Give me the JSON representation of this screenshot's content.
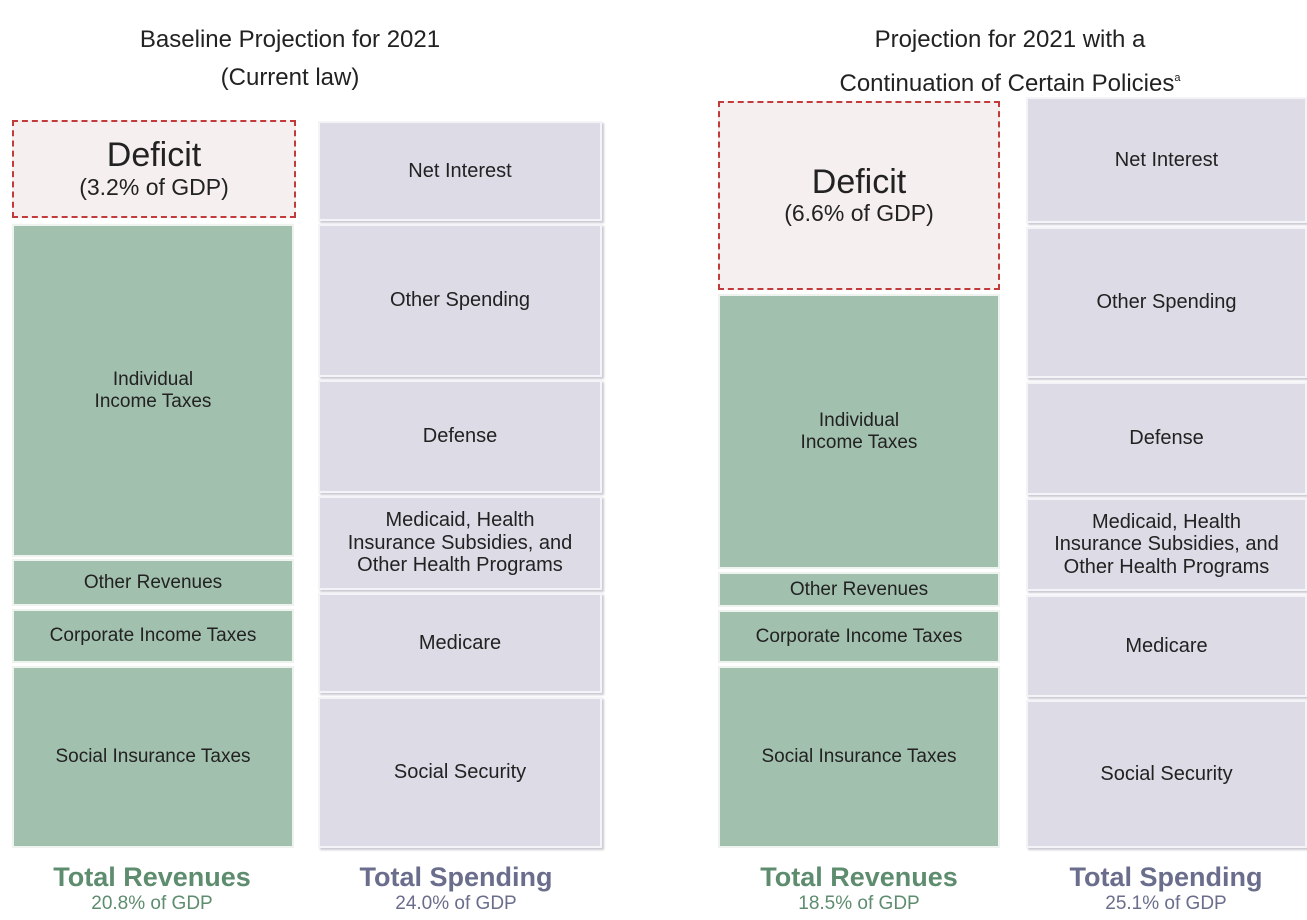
{
  "panels": [
    {
      "title": [
        "Baseline Projection for 2021",
        "(Current law)"
      ],
      "deficit": {
        "label": "Deficit",
        "share": "(3.2% of GDP)"
      },
      "revenues": {
        "items": [
          "Individual\nIncome Taxes",
          "Other Revenues",
          "Corporate Income Taxes",
          "Social Insurance Taxes"
        ],
        "total_label": "Total Revenues",
        "total": "20.8% of GDP"
      },
      "spending": {
        "items": [
          "Net Interest",
          "Other Spending",
          "Defense",
          "Medicaid, Health\nInsurance Subsidies, and\nOther Health Programs",
          "Medicare",
          "Social Security"
        ],
        "total_label": "Total Spending",
        "total": "24.0% of GDP"
      }
    },
    {
      "title": [
        "Projection for 2021 with a",
        "Continuation of Certain Policies"
      ],
      "title_note": "a",
      "deficit": {
        "label": "Deficit",
        "share": "(6.6% of GDP)"
      },
      "revenues": {
        "items": [
          "Individual\nIncome Taxes",
          "Other Revenues",
          "Corporate Income Taxes",
          "Social Insurance Taxes"
        ],
        "total_label": "Total Revenues",
        "total": "18.5% of GDP"
      },
      "spending": {
        "items": [
          "Net Interest",
          "Other Spending",
          "Defense",
          "Medicaid, Health\nInsurance Subsidies, and\nOther Health Programs",
          "Medicare",
          "Social Security"
        ],
        "total_label": "Total Spending",
        "total": "25.1% of GDP"
      }
    }
  ]
}
